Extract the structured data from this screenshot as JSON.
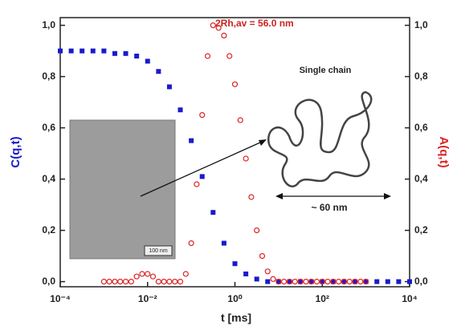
{
  "chart_data": {
    "type": "scatter",
    "xlabel": "t [ms]",
    "ylabel": "C(q,t)",
    "y2label": "A(q,t)",
    "xscale": "log",
    "xlim": [
      0.0001,
      10000
    ],
    "xticks": [
      {
        "value": 0.0001,
        "label": "10⁻⁴"
      },
      {
        "value": 0.01,
        "label": "10⁻²"
      },
      {
        "value": 1,
        "label": "10⁰"
      },
      {
        "value": 100,
        "label": "10²"
      },
      {
        "value": 10000,
        "label": "10⁴"
      }
    ],
    "ylim": [
      -0.02,
      1.03
    ],
    "yticks": [
      {
        "value": 0,
        "label": "0,0"
      },
      {
        "value": 0.2,
        "label": "0,2"
      },
      {
        "value": 0.4,
        "label": "0,4"
      },
      {
        "value": 0.6,
        "label": "0,6"
      },
      {
        "value": 0.8,
        "label": "0,8"
      },
      {
        "value": 1,
        "label": "1,0"
      }
    ],
    "y2lim": [
      -0.02,
      1.03
    ],
    "y2ticks": [
      {
        "value": 0,
        "label": "0,0"
      },
      {
        "value": 0.2,
        "label": "0,2"
      },
      {
        "value": 0.4,
        "label": "0,4"
      },
      {
        "value": 0.6,
        "label": "0,6"
      },
      {
        "value": 0.8,
        "label": "0,8"
      },
      {
        "value": 1,
        "label": "1,0"
      }
    ],
    "annotations": [
      "2Rh,av = 56.0 nm",
      "Single chain",
      "~ 60 nm",
      "100 nm"
    ],
    "series": [
      {
        "color": "#1a1acc",
        "marker": "square",
        "x": [
          0.0001,
          0.000178,
          0.000316,
          0.000562,
          0.001,
          0.00178,
          0.00316,
          0.00562,
          0.01,
          0.0178,
          0.0316,
          0.0562,
          0.1,
          0.178,
          0.316,
          0.562,
          1,
          1.78,
          3.16,
          5.62,
          10,
          17.8,
          31.6,
          56.2,
          100,
          178,
          316,
          562,
          1000,
          1780,
          3160,
          5620,
          10000
        ],
        "values": [
          0.9,
          0.9,
          0.9,
          0.9,
          0.9,
          0.89,
          0.89,
          0.88,
          0.86,
          0.82,
          0.76,
          0.67,
          0.55,
          0.41,
          0.27,
          0.15,
          0.07,
          0.03,
          0.01,
          0,
          0,
          0,
          0,
          0,
          0,
          0,
          0,
          0,
          0,
          0,
          0,
          0,
          0
        ]
      },
      {
        "color": "#dd2222",
        "marker": "circle",
        "axis": "y2",
        "x": [
          0.001,
          0.00133,
          0.00178,
          0.00237,
          0.00316,
          0.00422,
          0.00562,
          0.0075,
          0.01,
          0.0133,
          0.0178,
          0.0237,
          0.0316,
          0.0422,
          0.0562,
          0.075,
          0.1,
          0.133,
          0.178,
          0.237,
          0.316,
          0.422,
          0.562,
          0.75,
          1,
          1.33,
          1.78,
          2.37,
          3.16,
          4.22,
          5.62,
          7.5,
          10,
          13.3,
          17.8,
          23.7,
          31.6,
          42.2,
          56.2,
          75,
          100,
          133,
          178,
          237,
          316,
          422,
          562,
          750,
          1000
        ],
        "values": [
          0,
          0,
          0,
          0,
          0,
          0,
          0.02,
          0.03,
          0.03,
          0.02,
          0,
          0,
          0,
          0,
          0,
          0.03,
          0.15,
          0.38,
          0.65,
          0.88,
          1,
          0.99,
          0.96,
          0.88,
          0.77,
          0.63,
          0.48,
          0.33,
          0.2,
          0.1,
          0.04,
          0.01,
          0,
          0,
          0,
          0,
          0,
          0,
          0,
          0,
          0,
          0,
          0,
          0,
          0,
          0,
          0,
          0,
          0
        ]
      }
    ]
  }
}
